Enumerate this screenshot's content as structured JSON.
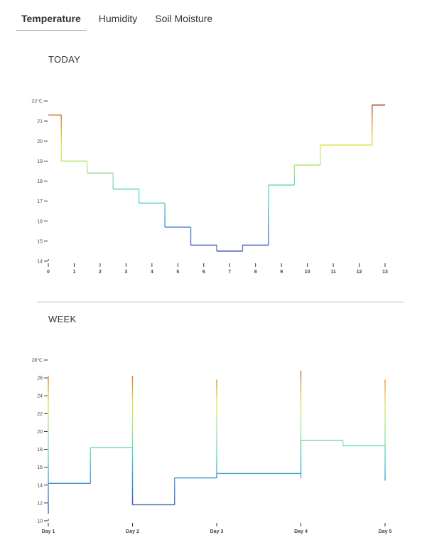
{
  "tabs": [
    {
      "label": "Temperature",
      "active": true
    },
    {
      "label": "Humidity",
      "active": false
    },
    {
      "label": "Soil Moisture",
      "active": false
    }
  ],
  "today": {
    "title": "TODAY"
  },
  "week": {
    "title": "WEEK"
  },
  "colors": {
    "tab_underline": "#9aa58a",
    "divider": "#b8bfa8",
    "cold": "#3b33a8",
    "warm": "#d8e84a",
    "hot": "#9e1c1c"
  },
  "chart_data": [
    {
      "type": "line",
      "title": "TODAY",
      "step": true,
      "x_ticks": [
        "0",
        "1",
        "2",
        "3",
        "4",
        "5",
        "6",
        "7",
        "8",
        "9",
        "10",
        "11",
        "12",
        "13"
      ],
      "y_ticks": [
        "14",
        "15",
        "16",
        "17",
        "18",
        "19",
        "20",
        "21",
        "22°C"
      ],
      "ylim": [
        14,
        22
      ],
      "points": [
        [
          0,
          21.3
        ],
        [
          0.5,
          19.0
        ],
        [
          1.5,
          18.4
        ],
        [
          2.5,
          17.6
        ],
        [
          3.5,
          16.9
        ],
        [
          4.5,
          15.7
        ],
        [
          5.5,
          14.8
        ],
        [
          6.5,
          14.5
        ],
        [
          7.5,
          14.8
        ],
        [
          8.5,
          17.8
        ],
        [
          9.5,
          18.8
        ],
        [
          10.5,
          19.8
        ],
        [
          12.5,
          21.8
        ],
        [
          13,
          21.8
        ]
      ],
      "grid": false
    },
    {
      "type": "line",
      "title": "WEEK",
      "step": true,
      "x_ticks": [
        "Day 1",
        "Day 2",
        "Day 3",
        "Day 4",
        "Day 5"
      ],
      "y_ticks": [
        "10",
        "12",
        "14",
        "16",
        "18",
        "20",
        "22",
        "24",
        "26",
        "28°C"
      ],
      "ylim": [
        10,
        28
      ],
      "points": [
        [
          0,
          14.2
        ],
        [
          0.5,
          18.2
        ],
        [
          1,
          11.8
        ],
        [
          1.5,
          14.8
        ],
        [
          2,
          15.3
        ],
        [
          3,
          19.0
        ],
        [
          3.5,
          18.4
        ],
        [
          4,
          18.4
        ]
      ],
      "ranges": [
        {
          "day": 0,
          "low": 10.8,
          "high": 26.2
        },
        {
          "day": 1,
          "low": 11.8,
          "high": 26.2
        },
        {
          "day": 2,
          "low": 14.8,
          "high": 25.8
        },
        {
          "day": 3,
          "low": 14.8,
          "high": 26.8
        },
        {
          "day": 4,
          "low": 14.5,
          "high": 25.8
        }
      ],
      "grid": false
    }
  ]
}
